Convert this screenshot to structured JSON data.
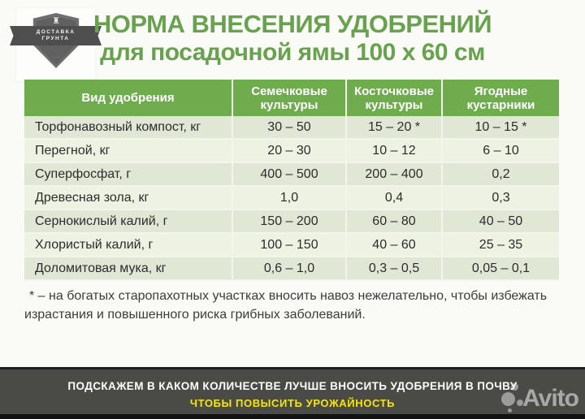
{
  "title": {
    "line1": "НОРМА ВНЕСЕНИЯ УДОБРЕНИЙ",
    "line2": "для посадочной ямы 100 х 60 см"
  },
  "logo": {
    "line1": "ДОСТАВКА",
    "line2": "ГРУНТА"
  },
  "table": {
    "headers": [
      "Вид удобрения",
      "Семечковые культуры",
      "Косточковые культуры",
      "Ягодные кустарники"
    ],
    "rows": [
      {
        "name": "Торфонавозный компост, кг",
        "values": [
          "30 – 50",
          "15 – 20 *",
          "10 – 15 *"
        ]
      },
      {
        "name": "Перегной, кг",
        "values": [
          "20 – 30",
          "10 – 12",
          "6 – 10"
        ]
      },
      {
        "name": "Суперфосфат, г",
        "values": [
          "400 – 500",
          "200 – 400",
          "0,2"
        ]
      },
      {
        "name": "Древесная зола, кг",
        "values": [
          "1,0",
          "0,4",
          "0,3"
        ]
      },
      {
        "name": "Сернокислый калий, г",
        "values": [
          "150 – 200",
          "60 – 80",
          "40 – 50"
        ]
      },
      {
        "name": "Хлористый калий, г",
        "values": [
          "100 – 150",
          "40 – 60",
          "25 – 35"
        ]
      },
      {
        "name": "Доломитовая мука, кг",
        "values": [
          "0,6 – 1,0",
          "0,3 – 0,5",
          "0,05 – 0,1"
        ]
      }
    ]
  },
  "footnote": {
    "line1": "* – на богатых старопахотных участках вносить навоз нежелательно, чтобы избежать",
    "line2": "израстания и повышенного риска грибных заболеваний."
  },
  "banner": {
    "line1": "ПОДСКАЖЕМ В КАКОМ КОЛИЧЕСТВЕ ЛУЧШЕ ВНОСИТЬ УДОБРЕНИЯ В ПОЧВУ",
    "line2": "ЧТОБЫ ПОВЫСИТЬ УРОЖАЙНОСТЬ"
  },
  "watermark": {
    "text": "Avito"
  },
  "colors": {
    "title_green": "#68a24f",
    "header_green": "#6fac4d",
    "row_odd": "#edf2e2",
    "row_even": "#e1e7d5",
    "banner_bg": "#4a4a47",
    "banner_yellow": "#f2e60d"
  }
}
